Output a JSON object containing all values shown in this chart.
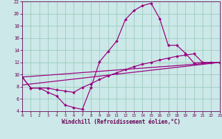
{
  "xlabel": "Windchill (Refroidissement éolien,°C)",
  "bg_color": "#cce8e8",
  "line_color": "#990080",
  "grid_color": "#99ccbb",
  "xlim": [
    0,
    23
  ],
  "ylim": [
    4,
    22
  ],
  "xticks": [
    0,
    1,
    2,
    3,
    4,
    5,
    6,
    7,
    8,
    9,
    10,
    11,
    12,
    13,
    14,
    15,
    16,
    17,
    18,
    19,
    20,
    21,
    22,
    23
  ],
  "yticks": [
    4,
    6,
    8,
    10,
    12,
    14,
    16,
    18,
    20,
    22
  ],
  "line1_x": [
    0,
    1,
    2,
    3,
    4,
    5,
    6,
    7,
    8,
    9,
    10,
    11,
    12,
    13,
    14,
    15,
    16,
    17,
    18,
    19,
    20,
    21,
    22,
    23
  ],
  "line1_y": [
    9.6,
    7.8,
    7.8,
    7.1,
    6.5,
    5.0,
    4.6,
    4.3,
    7.9,
    12.1,
    13.8,
    15.5,
    19.0,
    20.5,
    21.3,
    21.7,
    19.2,
    14.8,
    14.8,
    13.5,
    11.9,
    12.0,
    12.0,
    12.0
  ],
  "line2_x": [
    0,
    1,
    2,
    3,
    4,
    5,
    6,
    7,
    8,
    9,
    10,
    11,
    12,
    13,
    14,
    15,
    16,
    17,
    18,
    19,
    20,
    21,
    22,
    23
  ],
  "line2_y": [
    9.6,
    7.8,
    7.8,
    7.8,
    7.5,
    7.3,
    7.1,
    7.9,
    8.5,
    9.2,
    9.8,
    10.3,
    10.8,
    11.3,
    11.7,
    12.0,
    12.4,
    12.7,
    13.0,
    13.2,
    13.4,
    12.0,
    12.0,
    12.0
  ],
  "line3_x": [
    0,
    23
  ],
  "line3_y": [
    9.6,
    12.0
  ],
  "line4_x": [
    0,
    23
  ],
  "line4_y": [
    8.3,
    12.0
  ],
  "markersize": 2.0,
  "linewidth": 0.9,
  "tick_color": "#660055",
  "xlabel_color": "#660055"
}
